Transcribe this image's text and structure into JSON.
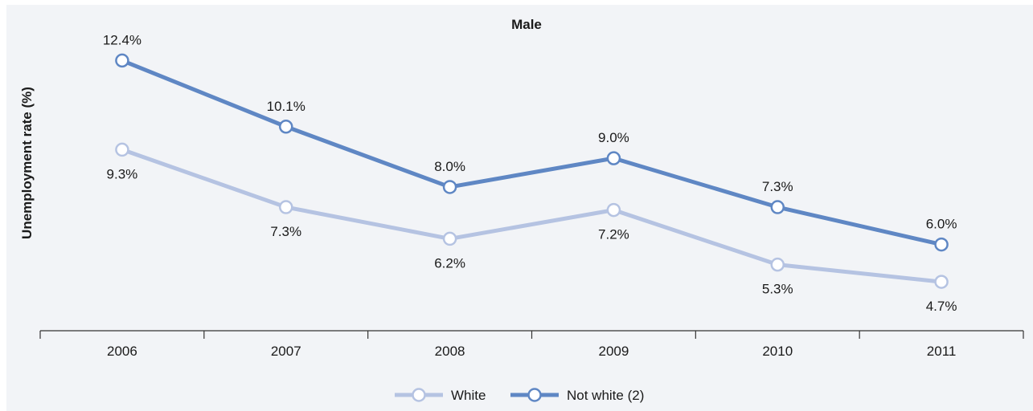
{
  "colors": {
    "background": "#f2f4f7",
    "white_series": "#b5c3e2",
    "not_white_series": "#5f87c4",
    "axis": "#333333",
    "text": "#1a1a1a"
  },
  "chart_data": {
    "type": "line",
    "title": "Male",
    "xlabel": "",
    "ylabel": "Unemployment rate (%)",
    "categories": [
      "2006",
      "2007",
      "2008",
      "2009",
      "2010",
      "2011"
    ],
    "ylim": [
      3,
      13.5
    ],
    "grid": false,
    "legend_position": "bottom",
    "series": [
      {
        "name": "White",
        "values": [
          9.3,
          7.3,
          6.2,
          7.2,
          5.3,
          4.7
        ],
        "labels": [
          "9.3%",
          "7.3%",
          "6.2%",
          "7.2%",
          "5.3%",
          "4.7%"
        ],
        "label_position": "below",
        "color": "#b5c3e2"
      },
      {
        "name": "Not white (2)",
        "values": [
          12.4,
          10.1,
          8.0,
          9.0,
          7.3,
          6.0
        ],
        "labels": [
          "12.4%",
          "10.1%",
          "8.0%",
          "9.0%",
          "7.3%",
          "6.0%"
        ],
        "label_position": "above",
        "color": "#5f87c4"
      }
    ]
  }
}
